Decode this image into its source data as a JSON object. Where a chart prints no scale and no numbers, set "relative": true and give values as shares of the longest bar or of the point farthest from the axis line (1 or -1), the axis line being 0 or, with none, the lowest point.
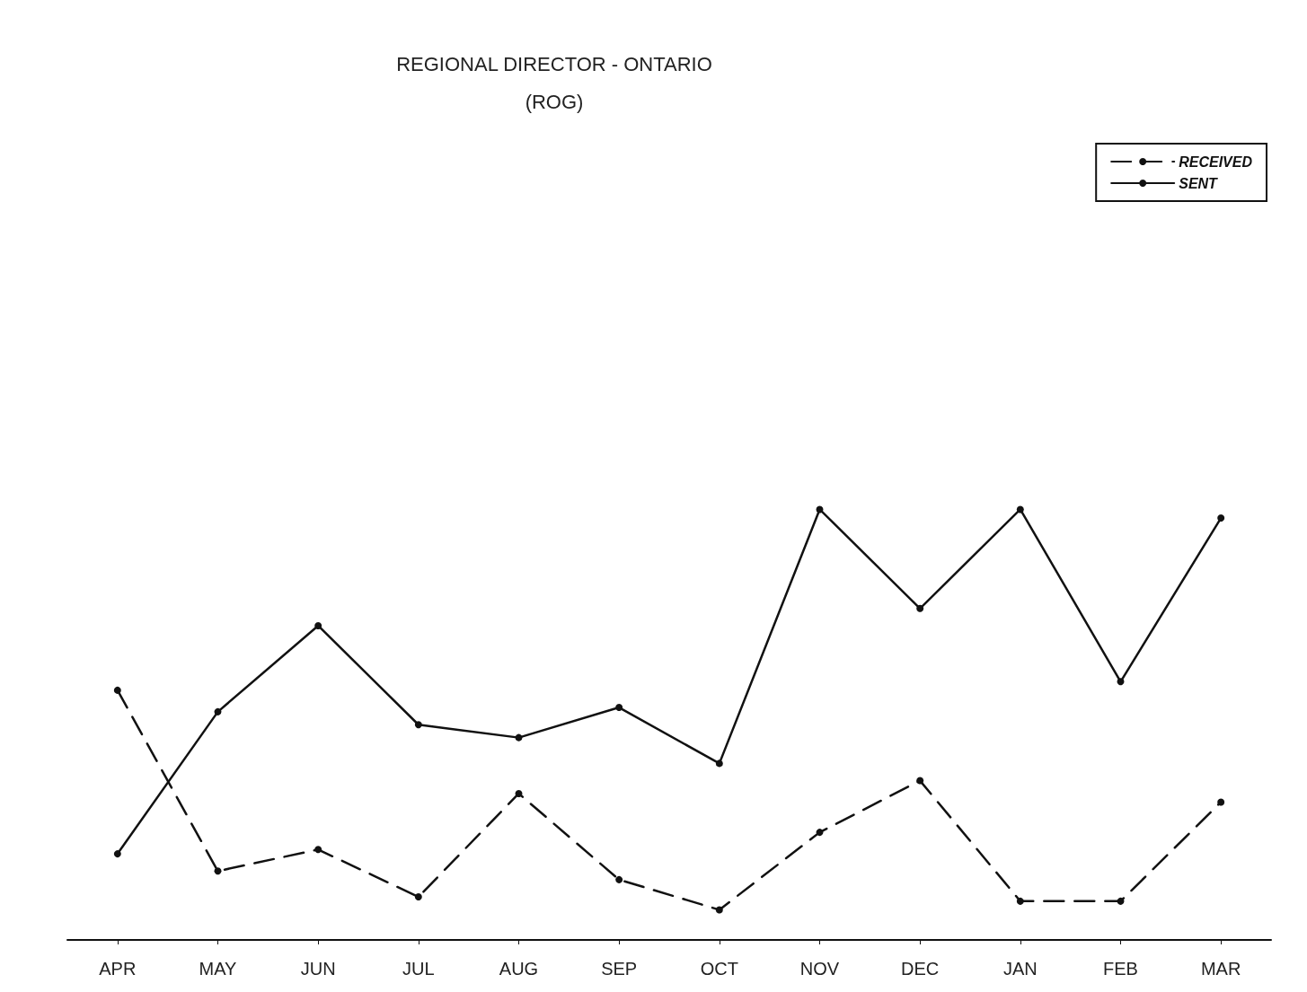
{
  "chart_data": {
    "type": "line",
    "title": "REGIONAL DIRECTOR - ONTARIO",
    "subtitle": "(ROG)",
    "categories": [
      "APR",
      "MAY",
      "JUN",
      "JUL",
      "AUG",
      "SEP",
      "OCT",
      "NOV",
      "DEC",
      "JAN",
      "FEB",
      "MAR"
    ],
    "relative": true,
    "legend": "top right",
    "marker": "circle",
    "grid": false,
    "series": [
      {
        "name": "RECEIVED",
        "color": "#111111",
        "line_style": "dashed",
        "values": [
          0.58,
          0.16,
          0.21,
          0.1,
          0.34,
          0.14,
          0.07,
          0.25,
          0.37,
          0.09,
          0.09,
          0.32
        ]
      },
      {
        "name": "SENT",
        "color": "#111111",
        "line_style": "solid",
        "values": [
          0.2,
          0.53,
          0.73,
          0.5,
          0.47,
          0.54,
          0.41,
          1.0,
          0.77,
          1.0,
          0.6,
          0.98
        ]
      }
    ]
  }
}
